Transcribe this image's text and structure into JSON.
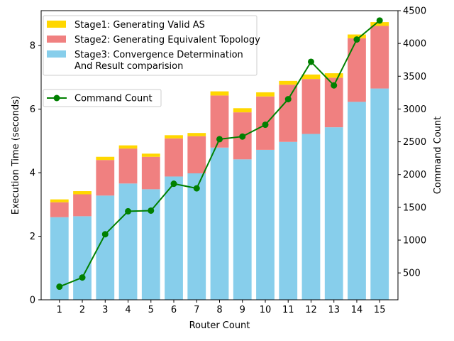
{
  "chart_data": {
    "type": "bar",
    "stacked": true,
    "categories": [
      "1",
      "2",
      "3",
      "4",
      "5",
      "6",
      "7",
      "8",
      "9",
      "10",
      "11",
      "12",
      "13",
      "14",
      "15"
    ],
    "xlabel": "Router Count",
    "ylabel": "Execution Time (seconds)",
    "y2label": "Command Count",
    "ylim": [
      0,
      9.1
    ],
    "y2lim": [
      90,
      4500
    ],
    "yticks": [
      0,
      2,
      4,
      6,
      8
    ],
    "y2ticks": [
      500,
      1000,
      1500,
      2000,
      2500,
      3000,
      3500,
      4000,
      4500
    ],
    "grid": false,
    "legend_placement": "top-left",
    "series": [
      {
        "name": "Stage3: Convergence Determination\nAnd Result comparision",
        "color": "#87ceeb",
        "values": [
          2.6,
          2.63,
          3.28,
          3.66,
          3.48,
          3.88,
          3.98,
          4.79,
          4.42,
          4.72,
          4.97,
          5.22,
          5.43,
          6.23,
          6.65
        ]
      },
      {
        "name": "Stage2: Generating Equivalent Topology",
        "color": "#f08080",
        "values": [
          0.47,
          0.69,
          1.12,
          1.1,
          1.02,
          1.2,
          1.17,
          1.64,
          1.48,
          1.68,
          1.8,
          1.73,
          1.56,
          2.0,
          1.97
        ]
      },
      {
        "name": "Stage1: Generating Valid AS",
        "color": "#ffd700",
        "values": [
          0.09,
          0.1,
          0.1,
          0.1,
          0.1,
          0.1,
          0.1,
          0.13,
          0.13,
          0.13,
          0.12,
          0.14,
          0.14,
          0.12,
          0.12
        ]
      },
      {
        "name": "Command Count",
        "type": "line",
        "axis": "right",
        "color": "#008000",
        "values": [
          290,
          430,
          1090,
          1440,
          1450,
          1860,
          1790,
          2540,
          2580,
          2760,
          3150,
          3720,
          3360,
          4060,
          4350
        ]
      }
    ]
  }
}
